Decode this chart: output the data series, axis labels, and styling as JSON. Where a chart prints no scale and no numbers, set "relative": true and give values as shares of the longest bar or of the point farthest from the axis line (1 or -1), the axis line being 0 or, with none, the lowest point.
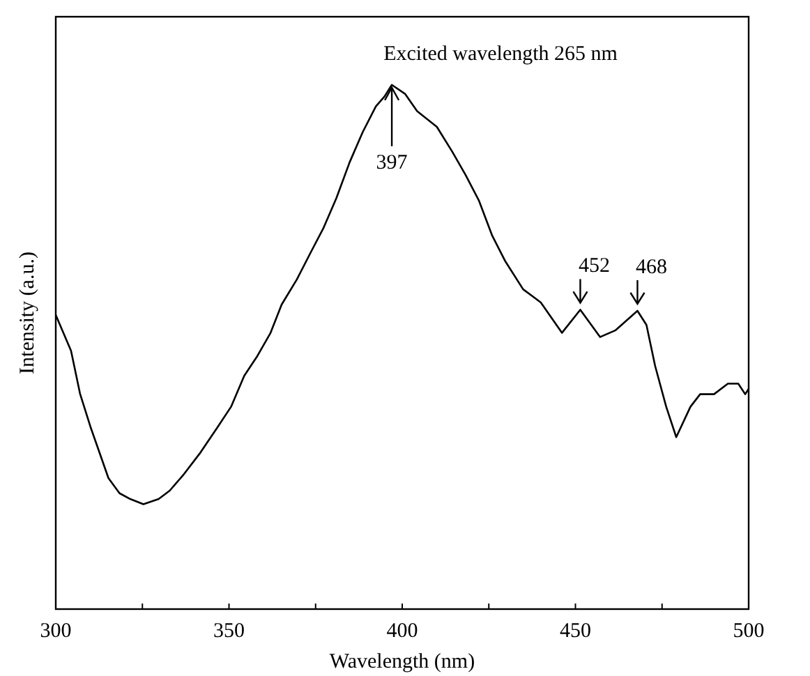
{
  "chart_data": {
    "type": "line",
    "relative": true,
    "xlabel": "Wavelength (nm)",
    "ylabel": "Intensity (a.u.)",
    "xlim": [
      300,
      500
    ],
    "xticks": [
      300,
      {
        "value": 325,
        "label": null
      },
      350,
      {
        "value": 375,
        "label": null
      },
      400,
      {
        "value": 425,
        "label": null
      },
      450,
      {
        "value": 475,
        "label": null
      },
      500
    ],
    "annotations": [
      "Excited wavelength 265 nm",
      {
        "text": "397",
        "x": 397,
        "y": 1.0
      },
      {
        "text": "452",
        "x": 451.4,
        "y": 0.571
      },
      {
        "text": "468",
        "x": 467.9,
        "y": 0.569
      }
    ],
    "series": [
      {
        "color": "#000000",
        "x": [
          300,
          304.4,
          307,
          310,
          315.2,
          318.4,
          321.5,
          325.3,
          329.7,
          332.9,
          336.7,
          341.8,
          346.8,
          350.6,
          354.4,
          358.2,
          362,
          365.2,
          369.6,
          373.4,
          377.2,
          381,
          384.8,
          388.6,
          392.4,
          394.9,
          397,
          400.8,
          404.3,
          410,
          414.5,
          418.3,
          422.1,
          426,
          429.8,
          434.9,
          440,
          446.1,
          451.4,
          457.1,
          461.6,
          467.9,
          470.5,
          473,
          476.2,
          479.1,
          483.2,
          486,
          490,
          494,
          497,
          499,
          500
        ],
        "values": [
          0.561,
          0.493,
          0.411,
          0.348,
          0.25,
          0.221,
          0.21,
          0.2,
          0.21,
          0.226,
          0.255,
          0.299,
          0.348,
          0.386,
          0.445,
          0.483,
          0.527,
          0.581,
          0.629,
          0.678,
          0.726,
          0.784,
          0.852,
          0.91,
          0.959,
          0.978,
          1.0,
          0.983,
          0.95,
          0.92,
          0.872,
          0.828,
          0.78,
          0.712,
          0.663,
          0.61,
          0.585,
          0.527,
          0.571,
          0.519,
          0.532,
          0.569,
          0.542,
          0.464,
          0.386,
          0.328,
          0.386,
          0.41,
          0.41,
          0.43,
          0.43,
          0.41,
          0.42
        ]
      }
    ]
  }
}
